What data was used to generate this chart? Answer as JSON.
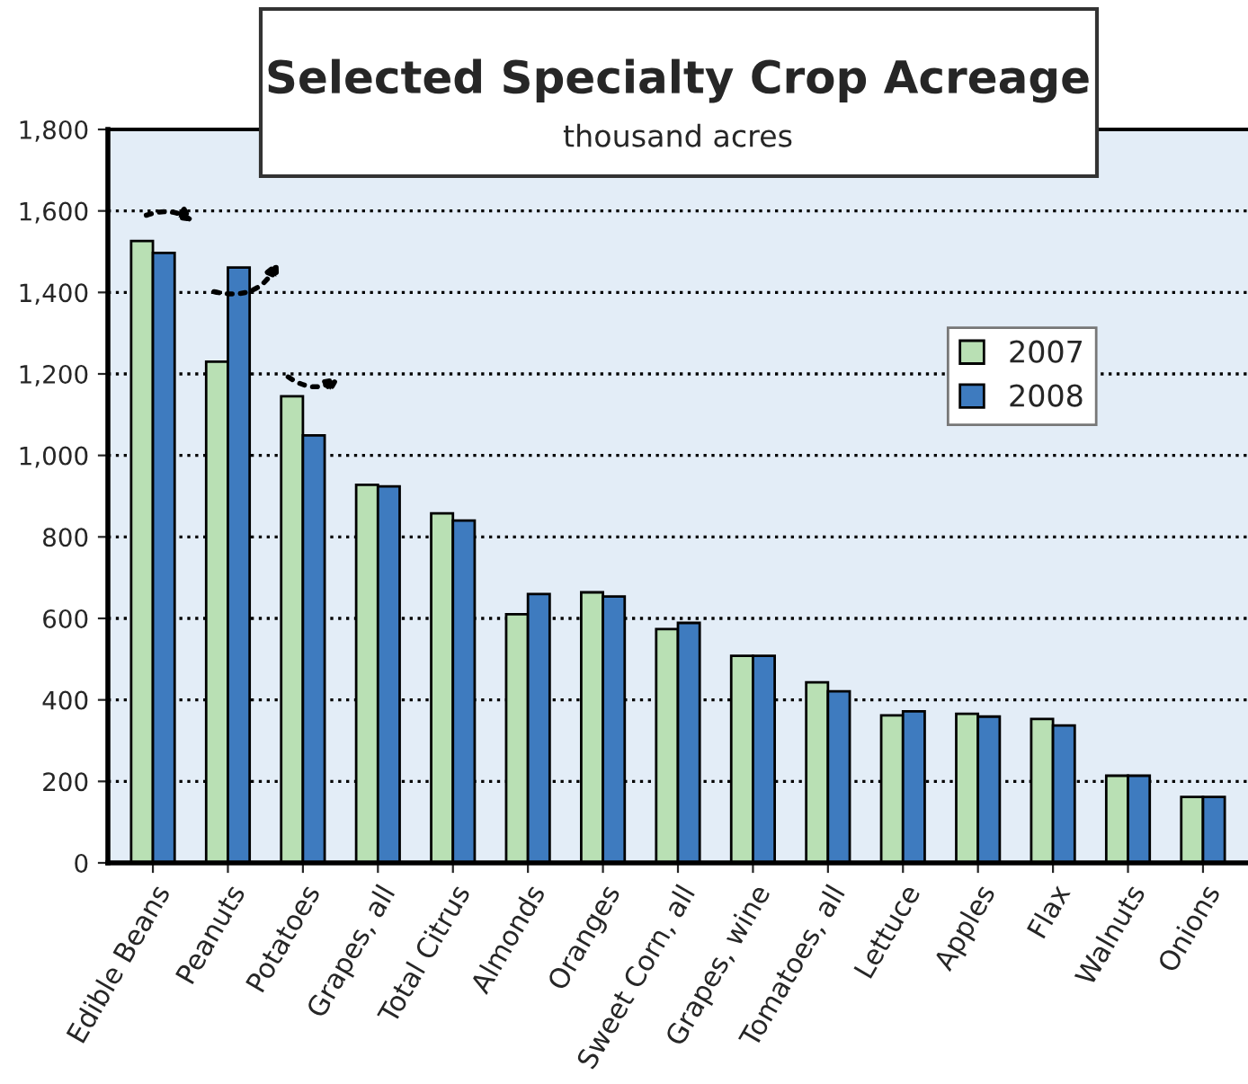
{
  "chart_data": {
    "type": "bar",
    "title": "Selected Specialty Crop Acreage",
    "subtitle": "thousand acres",
    "categories": [
      "Edible Beans",
      "Peanuts",
      "Potatoes",
      "Grapes, all",
      "Total Citrus",
      "Almonds",
      "Oranges",
      "Sweet Corn, all",
      "Grapes, wine",
      "Tomatoes, all",
      "Lettuce",
      "Apples",
      "Flax",
      "Walnuts",
      "Onions"
    ],
    "series": [
      {
        "name": "2007",
        "color": "#b9e0b4",
        "values": [
          1526,
          1230,
          1145,
          928,
          858,
          610,
          664,
          574,
          508,
          443,
          362,
          366,
          353,
          214,
          162
        ]
      },
      {
        "name": "2008",
        "color": "#3e7bbf",
        "values": [
          1497,
          1461,
          1049,
          924,
          840,
          660,
          654,
          589,
          508,
          421,
          372,
          359,
          337,
          214,
          162
        ]
      }
    ],
    "ylim": [
      0,
      1800
    ],
    "yticks": [
      {
        "value": 0,
        "label": "0"
      },
      {
        "value": 200,
        "label": "200"
      },
      {
        "value": 400,
        "label": "400"
      },
      {
        "value": 600,
        "label": "600"
      },
      {
        "value": 800,
        "label": "800"
      },
      {
        "value": 1000,
        "label": "1,000"
      },
      {
        "value": 1200,
        "label": "1,200"
      },
      {
        "value": 1400,
        "label": "1,400"
      },
      {
        "value": 1600,
        "label": "1,600"
      },
      {
        "value": 1800,
        "label": "1,800"
      }
    ],
    "grid": "y",
    "legend": "right"
  }
}
